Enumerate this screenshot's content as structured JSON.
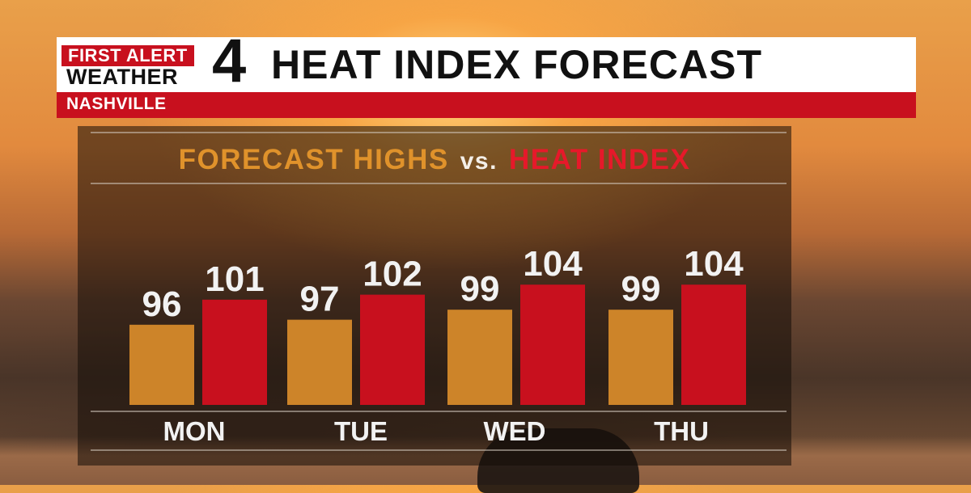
{
  "header": {
    "logo_line1": "FIRST ALERT",
    "logo_line2": "WEATHER",
    "logo_number": "4",
    "title": "HEAT INDEX FORECAST",
    "location": "NASHVILLE"
  },
  "chart_data": {
    "type": "bar",
    "title_part1": "FORECAST HIGHS",
    "title_connector": "vs.",
    "title_part2": "HEAT INDEX",
    "categories": [
      "MON",
      "TUE",
      "WED",
      "THU"
    ],
    "series": [
      {
        "name": "FORECAST HIGHS",
        "color": "#cd8429",
        "values": [
          96,
          97,
          99,
          99
        ]
      },
      {
        "name": "HEAT INDEX",
        "color": "#c8101e",
        "values": [
          101,
          102,
          104,
          104
        ]
      }
    ],
    "ylim": [
      80,
      105
    ],
    "grid": false,
    "xlabel": "",
    "ylabel": ""
  },
  "colors": {
    "brand_red": "#c8101e",
    "highs_text": "#e0922b",
    "heat_text": "#e6192a"
  }
}
